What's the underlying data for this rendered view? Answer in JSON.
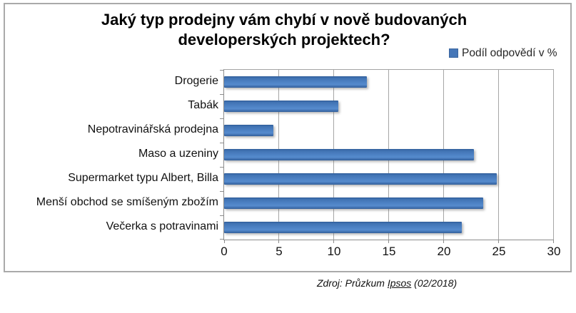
{
  "header": {
    "title_line1": "Jaký typ prodejny vám chybí v nově budovaných",
    "title_line2": "developerských projektech?"
  },
  "legend": {
    "label": "Podíl odpovědí v %"
  },
  "source": {
    "prefix": "Zdroj: Průzkum ",
    "underlined": "Ipsos",
    "suffix": " (02/2018)"
  },
  "chart_data": {
    "type": "bar",
    "orientation": "horizontal",
    "title": "Jaký typ prodejny vám chybí v nově budovaných developerských projektech?",
    "series_name": "Podíl odpovědí v %",
    "categories": [
      "Drogerie",
      "Tabák",
      "Nepotravinářská prodejna",
      "Maso a uzeniny",
      "Supermarket typu Albert, Billa",
      "Menší obchod se smíšeným zbožím",
      "Večerka s potravinami"
    ],
    "values": [
      13,
      10.4,
      4.5,
      22.7,
      24.8,
      23.6,
      21.6
    ],
    "xlabel": "",
    "ylabel": "",
    "xlim": [
      0,
      30
    ],
    "x_ticks": [
      0,
      5,
      10,
      15,
      20,
      25,
      30
    ],
    "grid": true,
    "legend_position": "top-right",
    "source": "Zdroj: Průzkum Ipsos (02/2018)",
    "colors": {
      "bar": "#4F81BD",
      "gridline": "#A6A6A6",
      "axis": "#8C8C8C",
      "frame_border": "#AAAAAA",
      "background": "#FFFFFF"
    }
  }
}
